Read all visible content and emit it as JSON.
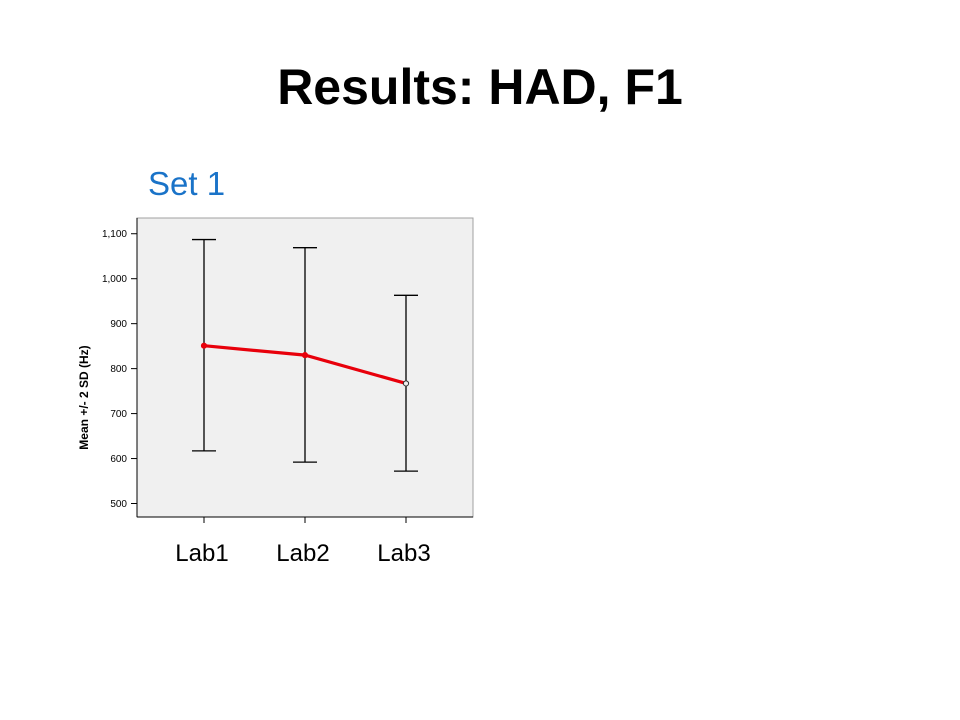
{
  "slide": {
    "title": "Results: HAD, F1",
    "subtitle": "Set 1"
  },
  "chart_data": {
    "type": "line",
    "title": "",
    "xlabel": "",
    "ylabel": "Mean +/- 2 SD (Hz)",
    "categories": [
      "Lab1",
      "Lab2",
      "Lab3"
    ],
    "yticks": [
      "500",
      "600",
      "700",
      "800",
      "900",
      "1,000",
      "1,100"
    ],
    "ytick_values": [
      500,
      600,
      700,
      800,
      900,
      1000,
      1100
    ],
    "ylim": [
      470,
      1135
    ],
    "series": [
      {
        "values": [
          851,
          830,
          767
        ],
        "lower": [
          617,
          592,
          572
        ],
        "upper": [
          1087,
          1069,
          963
        ]
      }
    ],
    "line_color": "#e8000b",
    "errorbar_color": "#000000",
    "plot_background": "#f0f0f0",
    "grid": false
  }
}
